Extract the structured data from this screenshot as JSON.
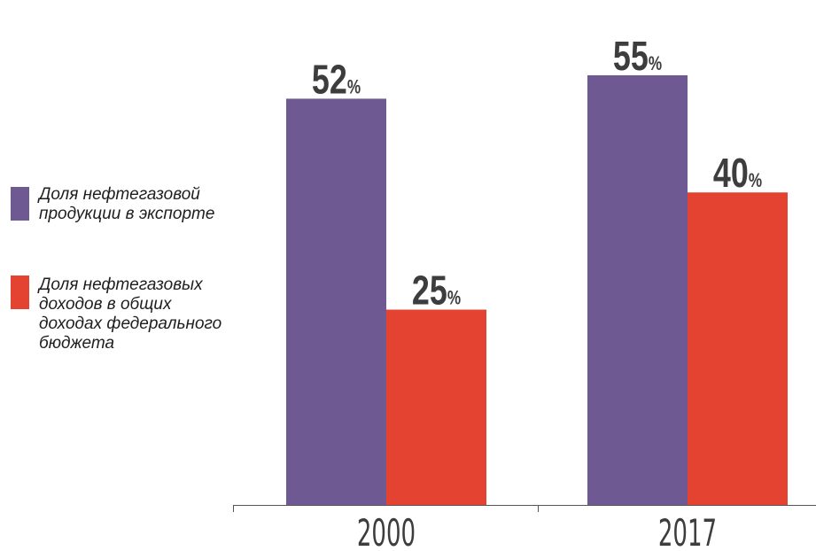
{
  "chart_data": {
    "type": "bar",
    "categories": [
      "2000",
      "2017"
    ],
    "series": [
      {
        "name": "Доля нефтегазовой продукции в экспорте",
        "color": "#6e5992",
        "values": [
          52,
          55
        ],
        "labels": [
          "52%",
          "55%"
        ]
      },
      {
        "name": "Доля нефтегазовых доходов в общих доходах федерального бюджета",
        "color": "#e44332",
        "values": [
          25,
          40
        ],
        "labels": [
          "25%",
          "40%"
        ]
      }
    ],
    "ylim": [
      0,
      58
    ],
    "grid": false,
    "legend_position": "left",
    "title": "",
    "xlabel": "",
    "ylabel": ""
  },
  "legend": {
    "items": [
      {
        "text": "Доля нефтегазовой\nпродукции в экспорте",
        "color": "#6e5992"
      },
      {
        "text": "Доля нефтегазовых\nдоходов в общих\nдоходах федерального\nбюджета",
        "color": "#e44332"
      }
    ]
  }
}
